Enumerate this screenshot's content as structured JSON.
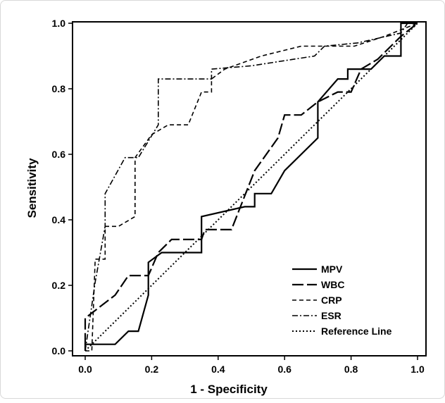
{
  "chart_data": {
    "type": "line",
    "title": "",
    "xlabel": "1 - Specificity",
    "ylabel": "Sensitivity",
    "xlim": [
      0,
      1
    ],
    "ylim": [
      0,
      1
    ],
    "xticks": [
      "0.0",
      "0.2",
      "0.4",
      "0.6",
      "0.8",
      "1.0"
    ],
    "yticks": [
      "0.0",
      "0.2",
      "0.4",
      "0.6",
      "0.8",
      "1.0"
    ],
    "grid": false,
    "legend_position": "bottom-right",
    "series": [
      {
        "name": "MPV",
        "style": "solid",
        "color": "#000000",
        "points": [
          [
            0,
            0
          ],
          [
            0,
            0.02
          ],
          [
            0.09,
            0.02
          ],
          [
            0.13,
            0.06
          ],
          [
            0.16,
            0.06
          ],
          [
            0.19,
            0.17
          ],
          [
            0.19,
            0.27
          ],
          [
            0.23,
            0.3
          ],
          [
            0.35,
            0.3
          ],
          [
            0.35,
            0.41
          ],
          [
            0.48,
            0.44
          ],
          [
            0.51,
            0.44
          ],
          [
            0.51,
            0.48
          ],
          [
            0.56,
            0.48
          ],
          [
            0.6,
            0.55
          ],
          [
            0.7,
            0.65
          ],
          [
            0.7,
            0.76
          ],
          [
            0.76,
            0.83
          ],
          [
            0.79,
            0.83
          ],
          [
            0.79,
            0.86
          ],
          [
            0.86,
            0.86
          ],
          [
            0.9,
            0.9
          ],
          [
            0.95,
            0.9
          ],
          [
            0.95,
            1.0
          ],
          [
            1.0,
            1.0
          ]
        ]
      },
      {
        "name": "WBC",
        "style": "dash",
        "color": "#000000",
        "points": [
          [
            0,
            0.02
          ],
          [
            0,
            0.1
          ],
          [
            0.09,
            0.17
          ],
          [
            0.13,
            0.23
          ],
          [
            0.19,
            0.23
          ],
          [
            0.22,
            0.3
          ],
          [
            0.26,
            0.34
          ],
          [
            0.35,
            0.34
          ],
          [
            0.36,
            0.37
          ],
          [
            0.44,
            0.37
          ],
          [
            0.51,
            0.55
          ],
          [
            0.58,
            0.65
          ],
          [
            0.6,
            0.72
          ],
          [
            0.65,
            0.72
          ],
          [
            0.7,
            0.76
          ],
          [
            0.76,
            0.79
          ],
          [
            0.8,
            0.79
          ],
          [
            0.83,
            0.86
          ],
          [
            0.88,
            0.89
          ],
          [
            0.92,
            0.93
          ],
          [
            0.95,
            0.96
          ],
          [
            1.0,
            1.0
          ]
        ]
      },
      {
        "name": "CRP",
        "style": "shortdash",
        "color": "#000000",
        "points": [
          [
            0,
            0
          ],
          [
            0.02,
            0
          ],
          [
            0.03,
            0.28
          ],
          [
            0.06,
            0.28
          ],
          [
            0.06,
            0.38
          ],
          [
            0.1,
            0.38
          ],
          [
            0.15,
            0.41
          ],
          [
            0.15,
            0.59
          ],
          [
            0.2,
            0.66
          ],
          [
            0.25,
            0.69
          ],
          [
            0.31,
            0.69
          ],
          [
            0.35,
            0.79
          ],
          [
            0.38,
            0.79
          ],
          [
            0.38,
            0.83
          ],
          [
            0.42,
            0.86
          ],
          [
            0.53,
            0.9
          ],
          [
            0.65,
            0.93
          ],
          [
            0.71,
            0.93
          ],
          [
            0.81,
            0.93
          ],
          [
            0.9,
            0.96
          ],
          [
            1.0,
            1.0
          ]
        ]
      },
      {
        "name": "ESR",
        "style": "dashdot",
        "color": "#000000",
        "points": [
          [
            0,
            0
          ],
          [
            0.03,
            0.21
          ],
          [
            0.06,
            0.38
          ],
          [
            0.06,
            0.48
          ],
          [
            0.12,
            0.59
          ],
          [
            0.16,
            0.59
          ],
          [
            0.22,
            0.69
          ],
          [
            0.22,
            0.83
          ],
          [
            0.38,
            0.83
          ],
          [
            0.38,
            0.86
          ],
          [
            0.5,
            0.87
          ],
          [
            0.69,
            0.9
          ],
          [
            0.72,
            0.93
          ],
          [
            0.82,
            0.94
          ],
          [
            0.95,
            0.97
          ],
          [
            0.97,
            1.0
          ],
          [
            1.0,
            1.0
          ]
        ]
      },
      {
        "name": "Reference Line",
        "style": "dot",
        "color": "#000000",
        "points": [
          [
            0,
            0
          ],
          [
            1,
            1
          ]
        ]
      }
    ]
  }
}
